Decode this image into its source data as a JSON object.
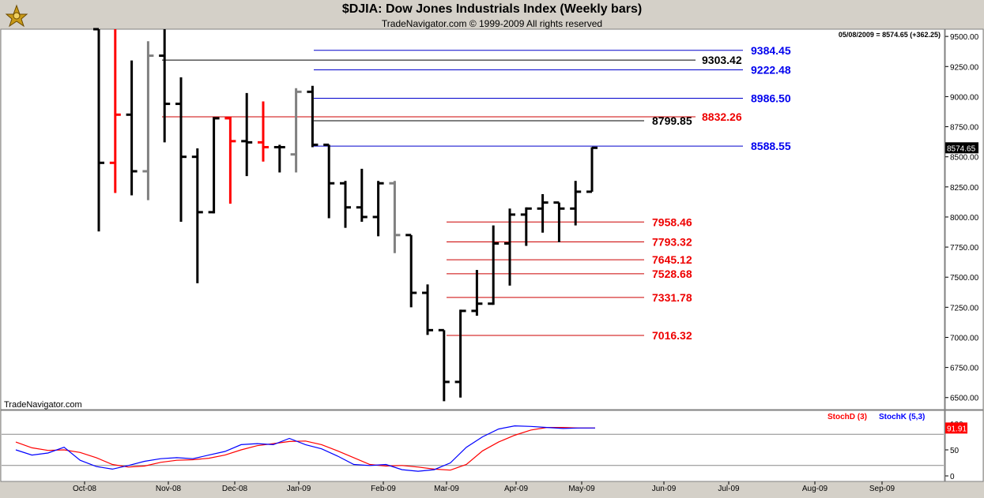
{
  "header": {
    "title": "$DJIA:  Dow Jones Industrials Index  (Weekly bars)",
    "subtitle": "TradeNavigator.com © 1999-2009 All rights reserved"
  },
  "info_line": "05/08/2009 = 8574.65 (+362.25)",
  "watermark": "TradeNavigator.com",
  "colors": {
    "up_bar": "#000000",
    "down_bar": "#ff0000",
    "neutral_bar": "#808080",
    "blue_line": "#0000cc",
    "red_line": "#cc0000",
    "black_line": "#000000",
    "stochD": "#ff0000",
    "stochK": "#0000ff",
    "panel_bg": "#ffffff"
  },
  "chart_data": [
    {
      "type": "ohlc",
      "title": "$DJIA:  Dow Jones Industrials Index  (Weekly bars)",
      "ylim": [
        6400,
        9560
      ],
      "y_ticks": [
        "9500.00",
        "9250.00",
        "9000.00",
        "8750.00",
        "8500.00",
        "8250.00",
        "8000.00",
        "7750.00",
        "7500.00",
        "7250.00",
        "7000.00",
        "6750.00",
        "6500.00"
      ],
      "y_tick_values": [
        9500,
        9250,
        9000,
        8750,
        8500,
        8250,
        8000,
        7750,
        7500,
        7250,
        7000,
        6750,
        6500
      ],
      "x_labels": [
        "Oct-08",
        "Nov-08",
        "Dec-08",
        "Jan-09",
        "Feb-09",
        "Mar-09",
        "Apr-09",
        "May-09",
        "Jun-09",
        "Jul-09",
        "Aug-09",
        "Sep-09"
      ],
      "last_price_label": "8574.65",
      "bars": [
        {
          "week": "2008-09-29",
          "o": 9560,
          "h": 9560,
          "l": 7880,
          "c": 8450,
          "color": "black"
        },
        {
          "week": "2008-10-06",
          "o": 8450,
          "h": 9560,
          "l": 8200,
          "c": 8850,
          "color": "red"
        },
        {
          "week": "2008-10-13",
          "o": 8850,
          "h": 9300,
          "l": 8180,
          "c": 8380,
          "color": "black"
        },
        {
          "week": "2008-10-20",
          "o": 8380,
          "h": 9460,
          "l": 8140,
          "c": 9340,
          "color": "gray"
        },
        {
          "week": "2008-10-27",
          "o": 9340,
          "h": 9560,
          "l": 8620,
          "c": 8940,
          "color": "black"
        },
        {
          "week": "2008-11-03",
          "o": 8940,
          "h": 9160,
          "l": 7960,
          "c": 8500,
          "color": "black"
        },
        {
          "week": "2008-11-10",
          "o": 8500,
          "h": 8570,
          "l": 7450,
          "c": 8040,
          "color": "black"
        },
        {
          "week": "2008-11-17",
          "o": 8040,
          "h": 8830,
          "l": 8030,
          "c": 8820,
          "color": "black"
        },
        {
          "week": "2008-11-24",
          "o": 8820,
          "h": 8830,
          "l": 8110,
          "c": 8630,
          "color": "red"
        },
        {
          "week": "2008-12-01",
          "o": 8630,
          "h": 9030,
          "l": 8340,
          "c": 8620,
          "color": "black"
        },
        {
          "week": "2008-12-08",
          "o": 8620,
          "h": 8960,
          "l": 8460,
          "c": 8580,
          "color": "red"
        },
        {
          "week": "2008-12-15",
          "o": 8580,
          "h": 8600,
          "l": 8370,
          "c": 8580,
          "color": "black"
        },
        {
          "week": "2008-12-22",
          "o": 8520,
          "h": 9070,
          "l": 8370,
          "c": 9040,
          "color": "gray"
        },
        {
          "week": "2008-12-29",
          "o": 9040,
          "h": 9090,
          "l": 8580,
          "c": 8600,
          "color": "black"
        },
        {
          "week": "2009-01-05",
          "o": 8600,
          "h": 8600,
          "l": 7990,
          "c": 8280,
          "color": "black"
        },
        {
          "week": "2009-01-12",
          "o": 8280,
          "h": 8300,
          "l": 7910,
          "c": 8080,
          "color": "black"
        },
        {
          "week": "2009-01-19",
          "o": 8080,
          "h": 8400,
          "l": 7960,
          "c": 8000,
          "color": "black"
        },
        {
          "week": "2009-01-26",
          "o": 8000,
          "h": 8300,
          "l": 7840,
          "c": 8280,
          "color": "black"
        },
        {
          "week": "2009-02-02",
          "o": 8280,
          "h": 8300,
          "l": 7700,
          "c": 7850,
          "color": "gray"
        },
        {
          "week": "2009-02-09",
          "o": 7850,
          "h": 7850,
          "l": 7250,
          "c": 7370,
          "color": "black"
        },
        {
          "week": "2009-02-16",
          "o": 7370,
          "h": 7440,
          "l": 7020,
          "c": 7060,
          "color": "black"
        },
        {
          "week": "2009-02-23",
          "o": 7060,
          "h": 7060,
          "l": 6470,
          "c": 6630,
          "color": "black"
        },
        {
          "week": "2009-03-02",
          "o": 6630,
          "h": 7230,
          "l": 6500,
          "c": 7220,
          "color": "black"
        },
        {
          "week": "2009-03-09",
          "o": 7220,
          "h": 7560,
          "l": 7180,
          "c": 7280,
          "color": "black"
        },
        {
          "week": "2009-03-16",
          "o": 7280,
          "h": 7930,
          "l": 7270,
          "c": 7780,
          "color": "black"
        },
        {
          "week": "2009-03-23",
          "o": 7780,
          "h": 8070,
          "l": 7430,
          "c": 8020,
          "color": "black"
        },
        {
          "week": "2009-03-30",
          "o": 8020,
          "h": 8080,
          "l": 7760,
          "c": 8070,
          "color": "black"
        },
        {
          "week": "2009-04-06",
          "o": 8070,
          "h": 8190,
          "l": 7870,
          "c": 8120,
          "color": "black"
        },
        {
          "week": "2009-04-13",
          "o": 8120,
          "h": 8120,
          "l": 7790,
          "c": 8070,
          "color": "black"
        },
        {
          "week": "2009-04-20",
          "o": 8070,
          "h": 8300,
          "l": 7930,
          "c": 8210,
          "color": "black"
        },
        {
          "week": "2009-04-27",
          "o": 8210,
          "h": 8580,
          "l": 8210,
          "c": 8574.65,
          "color": "black"
        }
      ],
      "levels": [
        {
          "value": 9384.45,
          "label": "9384.45",
          "color": "blue"
        },
        {
          "value": 9303.42,
          "label": "9303.42",
          "color": "black"
        },
        {
          "value": 9222.48,
          "label": "9222.48",
          "color": "blue"
        },
        {
          "value": 8986.5,
          "label": "8986.50",
          "color": "blue"
        },
        {
          "value": 8832.26,
          "label": "8832.26",
          "color": "red"
        },
        {
          "value": 8799.85,
          "label": "8799.85",
          "color": "black"
        },
        {
          "value": 8588.55,
          "label": "8588.55",
          "color": "blue"
        },
        {
          "value": 7958.46,
          "label": "7958.46",
          "color": "red"
        },
        {
          "value": 7793.32,
          "label": "7793.32",
          "color": "red"
        },
        {
          "value": 7645.12,
          "label": "7645.12",
          "color": "red"
        },
        {
          "value": 7528.68,
          "label": "7528.68",
          "color": "red"
        },
        {
          "value": 7331.78,
          "label": "7331.78",
          "color": "red"
        },
        {
          "value": 7016.32,
          "label": "7016.32",
          "color": "red"
        }
      ]
    },
    {
      "type": "line",
      "title": "",
      "ylim": [
        0,
        100
      ],
      "y_ticks": [
        "100",
        "50",
        "0"
      ],
      "y_tick_values": [
        100,
        50,
        0
      ],
      "last_value_label": "91.91",
      "legend": [
        "StochD (3)",
        "StochK (5,3)"
      ],
      "series": [
        {
          "name": "StochD (3)",
          "values": [
            65,
            54,
            49,
            50,
            45,
            35,
            22,
            17,
            19,
            26,
            30,
            31,
            34,
            40,
            50,
            58,
            62,
            66,
            67,
            60,
            48,
            35,
            22,
            19,
            20,
            17,
            13,
            11,
            22,
            48,
            65,
            78,
            88,
            93,
            93,
            92,
            91.9
          ]
        },
        {
          "name": "StochK (5,3)",
          "values": [
            50,
            40,
            44,
            55,
            30,
            18,
            13,
            20,
            28,
            33,
            35,
            33,
            40,
            47,
            60,
            62,
            60,
            72,
            60,
            52,
            38,
            22,
            20,
            22,
            12,
            9,
            12,
            25,
            55,
            75,
            90,
            96,
            95,
            93,
            91,
            91.9,
            91.9
          ]
        }
      ]
    }
  ]
}
